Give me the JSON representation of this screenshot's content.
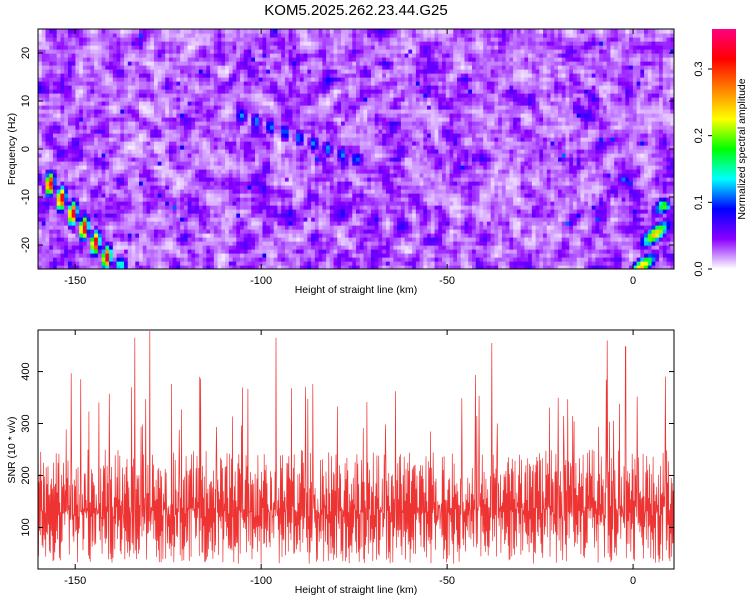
{
  "figure": {
    "title": "KOM5.2025.262.23.44.G25"
  },
  "chart_data": [
    {
      "type": "heatmap",
      "title": "KOM5.2025.262.23.44.G25",
      "xlabel": "Height of straight line (km)",
      "ylabel": "Frequency (Hz)",
      "xlim": [
        -160,
        11
      ],
      "ylim": [
        -25,
        25
      ],
      "x_ticks": [
        -150,
        -100,
        -50,
        0
      ],
      "y_ticks": [
        -20,
        -10,
        0,
        10,
        20
      ],
      "colorbar": {
        "label": "Normalized spectral amplitude",
        "range": [
          0.0,
          0.36
        ],
        "ticks": [
          0.0,
          0.1,
          0.2,
          0.3
        ],
        "colormap": [
          "#ffffff",
          "#8a00ff",
          "#0000ff",
          "#00ffff",
          "#00ff00",
          "#ffff00",
          "#ff8000",
          "#ff0000",
          "#ff0080"
        ]
      },
      "features": [
        {
          "desc": "bright streak",
          "x": [
            -158,
            -140
          ],
          "y": [
            -6,
            -24
          ],
          "peak": 0.35
        },
        {
          "desc": "diagonal streak",
          "x": [
            -105,
            -75
          ],
          "y": [
            7,
            -2
          ],
          "peak": 0.12
        },
        {
          "desc": "bright streak",
          "x": [
            9,
            2
          ],
          "y": [
            -12,
            -25
          ],
          "peak": 0.25
        }
      ]
    },
    {
      "type": "line",
      "xlabel": "Height of straight line (km)",
      "ylabel": "SNR (10 * v/v)",
      "xlim": [
        -160,
        11
      ],
      "ylim": [
        20,
        480
      ],
      "x_ticks": [
        -150,
        -100,
        -50,
        0
      ],
      "y_ticks": [
        100,
        200,
        300,
        400
      ],
      "color": "#ee3333",
      "series": [
        {
          "name": "",
          "x_range": [
            -160,
            11
          ],
          "typical_range": [
            50,
            250
          ],
          "peaks": [
            [
              -160,
              400
            ],
            [
              -134,
              465
            ],
            [
              -130,
              478
            ],
            [
              -96,
              465
            ],
            [
              -38,
              455
            ],
            [
              -7,
              460
            ],
            [
              -2,
              448
            ]
          ]
        }
      ]
    }
  ]
}
